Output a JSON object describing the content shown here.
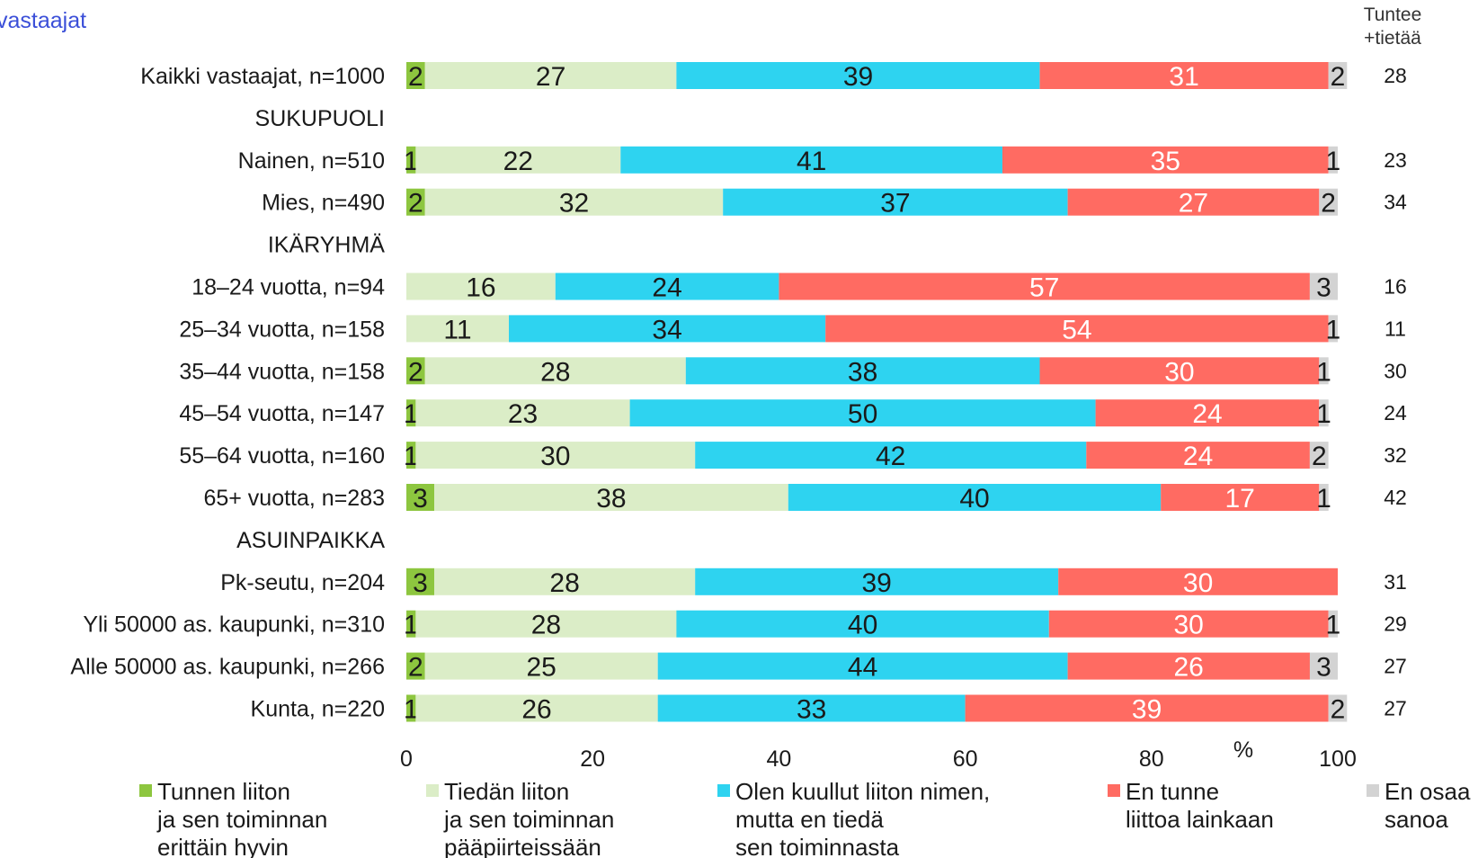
{
  "corner_text": "vastaajat",
  "right_header": [
    "Tuntee",
    "+tietää"
  ],
  "chart_data": {
    "type": "bar",
    "orientation": "horizontal",
    "stacked": true,
    "unit": "%",
    "xlim": [
      0,
      100
    ],
    "xticks": [
      0,
      20,
      40,
      60,
      80,
      100
    ],
    "legend_position": "bottom",
    "series": [
      {
        "name": "Tunnen liiton ja sen toiminnan erittäin hyvin",
        "legend_lines": [
          "Tunnen liiton",
          " ja sen toiminnan",
          " erittäin hyvin"
        ],
        "color": "#8dc63f",
        "text_color": "#1a1a1a"
      },
      {
        "name": "Tiedän liiton ja sen toiminnan pääpiirteissään",
        "legend_lines": [
          "Tiedän liiton",
          " ja sen toiminnan",
          " pääpiirteissään"
        ],
        "color": "#dbedc7",
        "text_color": "#1a1a1a"
      },
      {
        "name": "Olen kuullut liiton nimen, mutta en tiedä sen toiminnasta",
        "legend_lines": [
          "Olen kuullut liiton nimen,",
          "mutta en tiedä",
          "sen toiminnasta"
        ],
        "color": "#2ed3f0",
        "text_color": "#1a1a1a"
      },
      {
        "name": "En tunne liittoa lainkaan",
        "legend_lines": [
          "En tunne",
          "liittoa lainkaan"
        ],
        "color": "#ff6b62",
        "text_color": "#ffffff"
      },
      {
        "name": "En osaa sanoa",
        "legend_lines": [
          "En osaa",
          "sanoa"
        ],
        "color": "#d3d3d3",
        "text_color": "#1a1a1a"
      }
    ],
    "rows": [
      {
        "label": "Kaikki vastaajat, n=1000",
        "values": [
          2,
          27,
          39,
          31,
          2
        ],
        "total": "28"
      },
      {
        "label": "SUKUPUOLI",
        "header": true
      },
      {
        "label": "Nainen, n=510",
        "values": [
          1,
          22,
          41,
          35,
          1
        ],
        "total": "23"
      },
      {
        "label": "Mies, n=490",
        "values": [
          2,
          32,
          37,
          27,
          2
        ],
        "total": "34"
      },
      {
        "label": "IKÄRYHMÄ",
        "header": true
      },
      {
        "label": "18–24 vuotta, n=94",
        "values": [
          0,
          16,
          24,
          57,
          3
        ],
        "total": "16"
      },
      {
        "label": "25–34 vuotta, n=158",
        "values": [
          0,
          11,
          34,
          54,
          1
        ],
        "total": "11"
      },
      {
        "label": "35–44 vuotta, n=158",
        "values": [
          2,
          28,
          38,
          30,
          1
        ],
        "total": "30"
      },
      {
        "label": "45–54 vuotta, n=147",
        "values": [
          1,
          23,
          50,
          24,
          1
        ],
        "total": "24"
      },
      {
        "label": "55–64 vuotta, n=160",
        "values": [
          1,
          30,
          42,
          24,
          2
        ],
        "total": "32"
      },
      {
        "label": "65+ vuotta, n=283",
        "values": [
          3,
          38,
          40,
          17,
          1
        ],
        "total": "42"
      },
      {
        "label": "ASUINPAIKKA",
        "header": true
      },
      {
        "label": "Pk-seutu, n=204",
        "values": [
          3,
          28,
          39,
          30,
          0
        ],
        "total": "31"
      },
      {
        "label": "Yli 50000 as. kaupunki, n=310",
        "values": [
          1,
          28,
          40,
          30,
          1
        ],
        "total": "29"
      },
      {
        "label": "Alle 50000 as. kaupunki, n=266",
        "values": [
          2,
          25,
          44,
          26,
          3
        ],
        "total": "27"
      },
      {
        "label": "Kunta, n=220",
        "values": [
          1,
          26,
          33,
          39,
          2
        ],
        "total": "27"
      }
    ]
  }
}
